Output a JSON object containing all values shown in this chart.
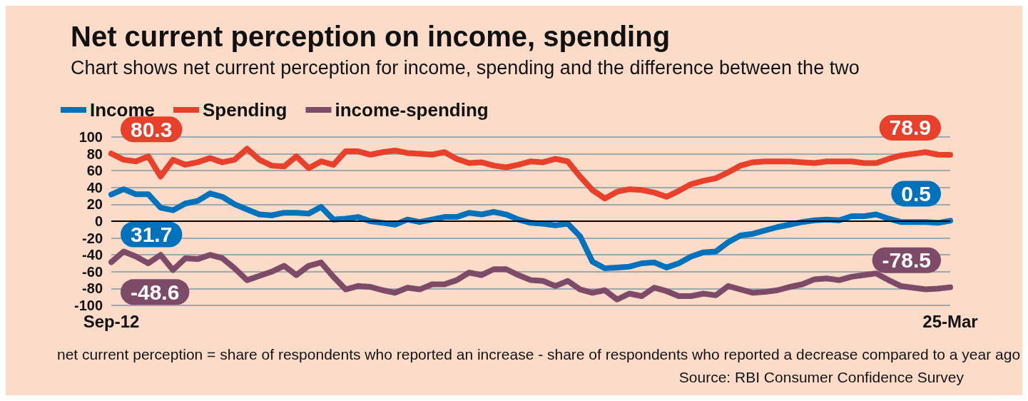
{
  "chart_data": {
    "type": "line",
    "title": "Net current perception on income, spending",
    "subtitle": "Chart shows net current perception for income, spending and the difference between the two",
    "categories": [
      "Sep-12",
      null,
      null,
      null,
      null,
      null,
      null,
      null,
      null,
      null,
      null,
      null,
      null,
      null,
      null,
      null,
      null,
      null,
      null,
      null,
      null,
      null,
      null,
      null,
      null,
      null,
      null,
      null,
      null,
      null,
      null,
      null,
      null,
      null,
      null,
      null,
      null,
      null,
      null,
      null,
      null,
      null,
      null,
      null,
      null,
      null,
      null,
      null,
      null,
      null,
      null,
      null,
      null,
      null,
      null,
      null,
      null,
      null,
      null,
      null,
      null,
      null,
      null,
      null,
      null,
      null,
      null,
      null,
      "25-Mar"
    ],
    "series": [
      {
        "name": "Income",
        "color": "#0072bc",
        "values": [
          31.7,
          38,
          32,
          32,
          16,
          13,
          21,
          24,
          33,
          29,
          20,
          14,
          8,
          7,
          10,
          10,
          9,
          17,
          2,
          3,
          5,
          0,
          -2,
          -4,
          2,
          -1,
          2,
          5,
          5,
          10,
          8,
          11,
          8,
          2,
          -2,
          -3,
          -5,
          -3,
          -18,
          -48,
          -56,
          -55,
          -54,
          -50,
          -49,
          -55,
          -50,
          -42,
          -37,
          -36,
          -25,
          -17,
          -15,
          -11,
          -7,
          -4,
          -1,
          1,
          2,
          1,
          6,
          6,
          8,
          3,
          -1,
          -1,
          -1,
          -2,
          0.5
        ],
        "value_labels": [
          "31.7",
          null,
          null,
          null,
          null,
          null,
          null,
          null,
          null,
          null,
          null,
          null,
          null,
          null,
          null,
          null,
          null,
          null,
          null,
          null,
          null,
          null,
          null,
          null,
          null,
          null,
          null,
          null,
          null,
          null,
          null,
          null,
          null,
          null,
          null,
          null,
          null,
          null,
          null,
          null,
          null,
          null,
          null,
          null,
          null,
          null,
          null,
          null,
          null,
          null,
          null,
          null,
          null,
          null,
          null,
          null,
          null,
          null,
          null,
          null,
          null,
          null,
          null,
          null,
          null,
          null,
          null,
          null,
          "0.5"
        ]
      },
      {
        "name": "Spending",
        "color": "#e8402a",
        "values": [
          80.3,
          73,
          71,
          77,
          53,
          73,
          67,
          70,
          75,
          70,
          73,
          86,
          73,
          66,
          65,
          77,
          63,
          71,
          67,
          83,
          83,
          79,
          82,
          84,
          81,
          80,
          79,
          82,
          74,
          69,
          70,
          66,
          64,
          67,
          71,
          70,
          74,
          71,
          53,
          37,
          27,
          35,
          38,
          37,
          34,
          29,
          36,
          44,
          48,
          51,
          58,
          66,
          70,
          71,
          71,
          71,
          70,
          69,
          71,
          71,
          71,
          69,
          69,
          74,
          78,
          80,
          82,
          79,
          78.9
        ],
        "value_labels": [
          "80.3",
          null,
          null,
          null,
          null,
          null,
          null,
          null,
          null,
          null,
          null,
          null,
          null,
          null,
          null,
          null,
          null,
          null,
          null,
          null,
          null,
          null,
          null,
          null,
          null,
          null,
          null,
          null,
          null,
          null,
          null,
          null,
          null,
          null,
          null,
          null,
          null,
          null,
          null,
          null,
          null,
          null,
          null,
          null,
          null,
          null,
          null,
          null,
          null,
          null,
          null,
          null,
          null,
          null,
          null,
          null,
          null,
          null,
          null,
          null,
          null,
          null,
          null,
          null,
          null,
          null,
          null,
          null,
          "78.9"
        ]
      },
      {
        "name": "income-spending",
        "color": "#7d4a68",
        "values": [
          -48.6,
          -36,
          -42,
          -50,
          -40,
          -58,
          -44,
          -45,
          -40,
          -44,
          -56,
          -70,
          -65,
          -60,
          -53,
          -64,
          -53,
          -49,
          -66,
          -81,
          -77,
          -78,
          -82,
          -85,
          -79,
          -81,
          -75,
          -75,
          -70,
          -61,
          -64,
          -57,
          -57,
          -64,
          -70,
          -71,
          -77,
          -71,
          -81,
          -85,
          -82,
          -93,
          -86,
          -89,
          -79,
          -83,
          -89,
          -89,
          -86,
          -88,
          -77,
          -81,
          -85,
          -84,
          -82,
          -78,
          -75,
          -69,
          -68,
          -70,
          -66,
          -64,
          -62,
          -70,
          -77,
          -79,
          -81,
          -80,
          -78.5
        ],
        "value_labels": [
          "-48.6",
          null,
          null,
          null,
          null,
          null,
          null,
          null,
          null,
          null,
          null,
          null,
          null,
          null,
          null,
          null,
          null,
          null,
          null,
          null,
          null,
          null,
          null,
          null,
          null,
          null,
          null,
          null,
          null,
          null,
          null,
          null,
          null,
          null,
          null,
          null,
          null,
          null,
          null,
          null,
          null,
          null,
          null,
          null,
          null,
          null,
          null,
          null,
          null,
          null,
          null,
          null,
          null,
          null,
          null,
          null,
          null,
          null,
          null,
          null,
          null,
          null,
          null,
          null,
          null,
          null,
          null,
          null,
          "-78.5"
        ]
      }
    ],
    "ylim": [
      -100,
      100
    ],
    "yticks": [
      -100,
      -80,
      -60,
      -40,
      -20,
      0,
      20,
      40,
      60,
      80,
      100
    ],
    "grid": "y",
    "legend": "top left",
    "ref_lines": [
      {
        "axis": "y",
        "value": 0,
        "color": "#000000"
      }
    ],
    "annotations": [
      "net current perception = share of respondents who reported an increase - share of respondents who reported a decrease compared to a year ago",
      "Source: RBI Consumer Confidence Survey"
    ]
  }
}
